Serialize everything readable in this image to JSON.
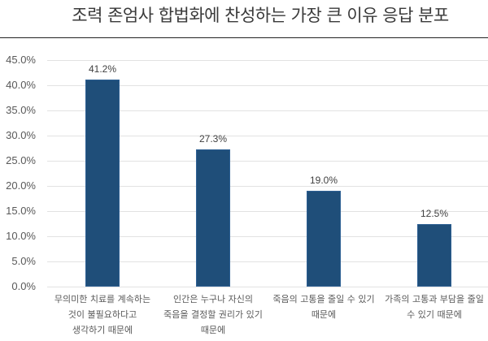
{
  "chart_data": {
    "type": "bar",
    "title": "조력 존엄사 합법화에 찬성하는 가장 큰 이유 응답 분포",
    "categories": [
      "무의미한 치료를 계속하는 것이 불필요하다고 생각하기 때문에",
      "인간은 누구나 자신의 죽음을 결정할 권리가 있기 때문에",
      "죽음의 고통을 줄일 수 있기 때문에",
      "가족의 고통과 부담을 줄일 수 있기 때문에"
    ],
    "category_lines": [
      [
        "무의미한 치료를 계속하는",
        "것이 불필요하다고",
        "생각하기 때문에"
      ],
      [
        "인간은 누구나 자신의",
        "죽음을 결정할 권리가 있기",
        "때문에"
      ],
      [
        "죽음의 고통을 줄일 수 있기",
        "때문에"
      ],
      [
        "가족의 고통과 부담을 줄일",
        "수 있기 때문에"
      ]
    ],
    "values": [
      41.2,
      27.3,
      19.0,
      12.5
    ],
    "data_labels": [
      "41.2%",
      "27.3%",
      "19.0%",
      "12.5%"
    ],
    "xlabel": "",
    "ylabel": "",
    "ylim": [
      0,
      45
    ],
    "yticks": [
      "0.0%",
      "5.0%",
      "10.0%",
      "15.0%",
      "20.0%",
      "25.0%",
      "30.0%",
      "35.0%",
      "40.0%",
      "45.0%"
    ],
    "grid": true,
    "legend": null,
    "bar_color": "#1f4e79"
  }
}
